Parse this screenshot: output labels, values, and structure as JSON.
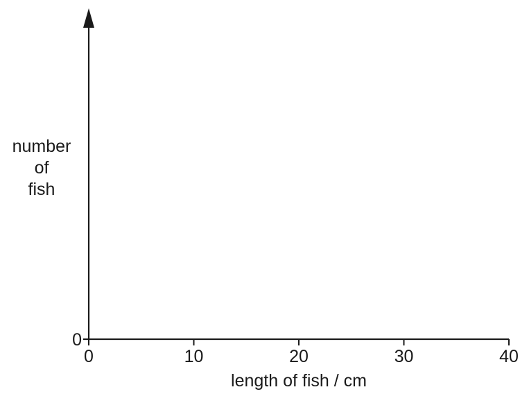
{
  "chart_data": {
    "type": "bar",
    "title": "",
    "xlabel": "length of fish / cm",
    "ylabel": [
      "number",
      "of",
      "fish"
    ],
    "x_ticks": [
      0,
      10,
      20,
      30,
      40
    ],
    "xlim": [
      0,
      40
    ],
    "y_ticks": [
      0
    ],
    "series": [],
    "grid": false,
    "legend": "none"
  }
}
